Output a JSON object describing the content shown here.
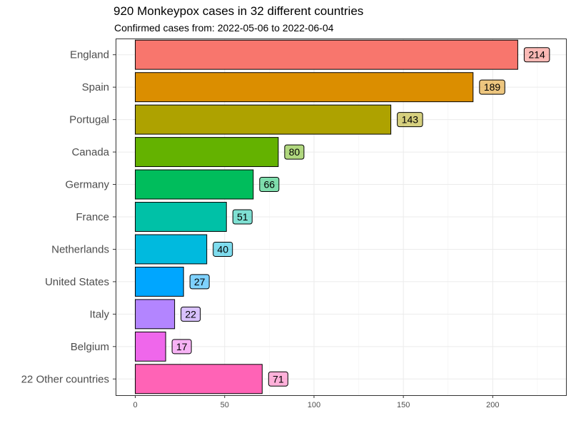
{
  "chart_data": {
    "type": "bar",
    "orientation": "horizontal",
    "title": "920 Monkeypox cases in 32 different countries",
    "subtitle": "Confirmed cases from: 2022-05-06 to 2022-06-04",
    "xlabel": "",
    "ylabel": "",
    "categories": [
      "England",
      "Spain",
      "Portugal",
      "Canada",
      "Germany",
      "France",
      "Netherlands",
      "United States",
      "Italy",
      "Belgium",
      "22 Other countries"
    ],
    "values": [
      214,
      189,
      143,
      80,
      66,
      51,
      40,
      27,
      22,
      17,
      71
    ],
    "colors": [
      "#F8766D",
      "#DB8E00",
      "#AEA200",
      "#64B200",
      "#00BD5C",
      "#00C1A7",
      "#00BADE",
      "#00A6FF",
      "#B385FF",
      "#EF67EB",
      "#FF63B6"
    ],
    "xlim": [
      -11,
      241
    ],
    "x_ticks": [
      0,
      50,
      100,
      150,
      200
    ],
    "x_tick_labels": [
      "0",
      "50",
      "100",
      "150",
      "200"
    ],
    "grid": true,
    "legend": "none"
  }
}
